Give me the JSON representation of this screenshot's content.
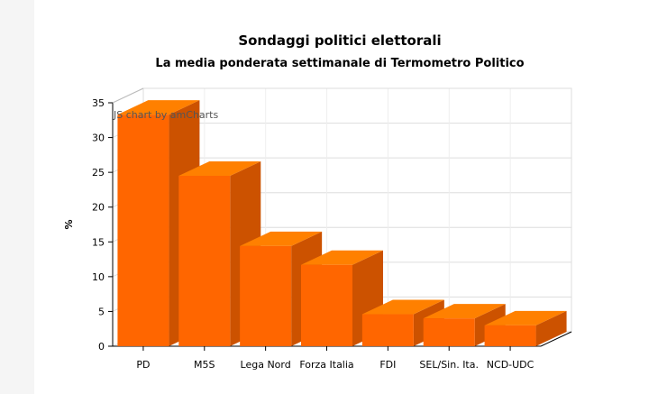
{
  "chart_data": {
    "type": "bar",
    "title": "Sondaggi politici elettorali",
    "subtitle": "La media ponderata settimanale di Termometro Politico",
    "xlabel": "",
    "ylabel": "%",
    "categories": [
      "PD",
      "M5S",
      "Lega Nord",
      "Forza Italia",
      "FDI",
      "SEL/Sin. Ita.",
      "NCD-UDC"
    ],
    "values": [
      33.3,
      24.5,
      14.4,
      11.7,
      4.6,
      4.0,
      3.0
    ],
    "ylim": [
      0,
      35
    ],
    "yticks": [
      0,
      5,
      10,
      15,
      20,
      25,
      30,
      35
    ],
    "grid": true,
    "three_d": true,
    "bar_color": "#ff6600",
    "bar_top_color": "#ff8000",
    "bar_side_color": "#cc5200",
    "credit": "JS chart by amCharts"
  }
}
